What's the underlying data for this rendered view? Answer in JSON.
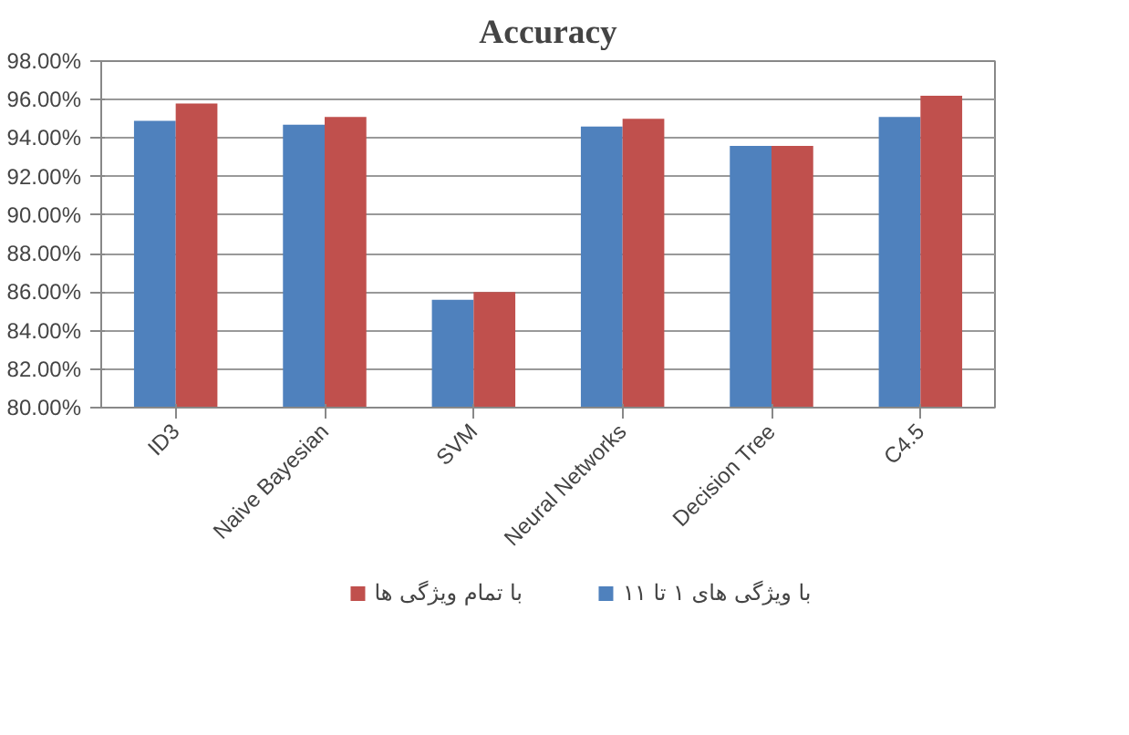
{
  "chart_data": {
    "type": "bar",
    "title": "Accuracy",
    "categories": [
      "ID3",
      "Naive Bayesian",
      "SVM",
      "Neural Networks",
      "Decision Tree",
      "C4.5"
    ],
    "series": [
      {
        "name": "با ویژگی های ١ تا ١١",
        "color": "#4f81bd",
        "values": [
          94.9,
          94.7,
          85.6,
          94.6,
          93.6,
          95.1
        ]
      },
      {
        "name": "با تمام ویژگی ها",
        "color": "#c0504d",
        "values": [
          95.8,
          95.1,
          86.0,
          95.0,
          93.6,
          96.2
        ]
      }
    ],
    "ylim": [
      80,
      98
    ],
    "yticks": [
      {
        "value": 80,
        "label": "80.00%"
      },
      {
        "value": 82,
        "label": "82.00%"
      },
      {
        "value": 84,
        "label": "84.00%"
      },
      {
        "value": 86,
        "label": "86.00%"
      },
      {
        "value": 88,
        "label": "88.00%"
      },
      {
        "value": 90,
        "label": "90.00%"
      },
      {
        "value": 92,
        "label": "92.00%"
      },
      {
        "value": 94,
        "label": "94.00%"
      },
      {
        "value": 96,
        "label": "96.00%"
      },
      {
        "value": 98,
        "label": "98.00%"
      }
    ],
    "grid": "y",
    "legend": "bottom"
  }
}
